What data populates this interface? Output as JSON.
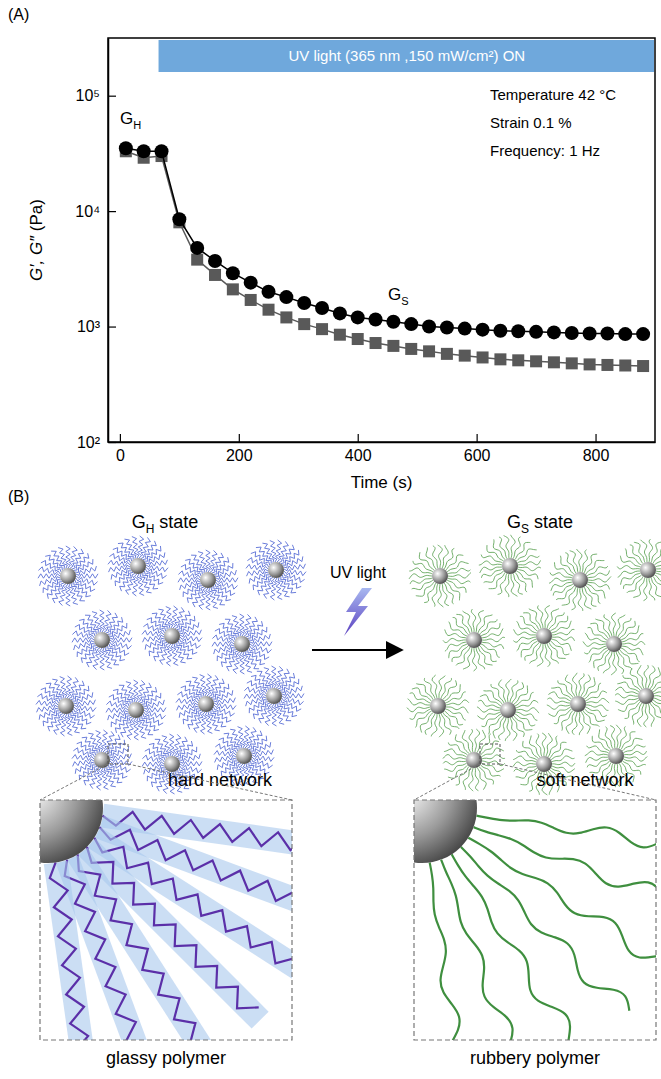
{
  "chart_data": {
    "type": "line",
    "panel_label": "(A)",
    "x_label": "Time (s)",
    "y_label": "G′, G″ (Pa)",
    "log": "y",
    "xlim": [
      -20,
      900
    ],
    "ylim": [
      100,
      316000
    ],
    "xticks": [
      0,
      200,
      400,
      600,
      800
    ],
    "yticks": [
      {
        "value": 100,
        "label": "10²"
      },
      {
        "value": 1000,
        "label": "10³"
      },
      {
        "value": 10000,
        "label": "10⁴"
      },
      {
        "value": 100000,
        "label": "10⁵"
      }
    ],
    "x": [
      10,
      40,
      70,
      100,
      130,
      160,
      190,
      220,
      250,
      280,
      310,
      340,
      370,
      400,
      430,
      460,
      490,
      520,
      550,
      580,
      610,
      640,
      670,
      700,
      730,
      760,
      790,
      820,
      850,
      880
    ],
    "series": [
      {
        "color": "#000000",
        "marker": "circle",
        "values": [
          35000,
          33000,
          33000,
          8500,
          4800,
          3700,
          2900,
          2400,
          2000,
          1800,
          1600,
          1450,
          1300,
          1200,
          1150,
          1100,
          1050,
          1000,
          980,
          960,
          940,
          920,
          910,
          900,
          890,
          880,
          870,
          870,
          860,
          860
        ]
      },
      {
        "color": "#595959",
        "marker": "square",
        "values": [
          33000,
          29000,
          30000,
          8000,
          3800,
          2800,
          2100,
          1700,
          1400,
          1200,
          1050,
          950,
          850,
          780,
          720,
          680,
          640,
          610,
          580,
          560,
          540,
          520,
          510,
          500,
          490,
          480,
          470,
          465,
          460,
          455
        ]
      }
    ],
    "annotations": [
      {
        "text": "UV light (365 nm ,150 mW/cm²) ON",
        "x_start": 65
      },
      {
        "text": "Temperature 42 °C"
      },
      {
        "text": "Strain 0.1 %"
      },
      {
        "text": "Frequency: 1 Hz"
      },
      {
        "text": "G",
        "sub": "H"
      },
      {
        "text": "G",
        "sub": "S"
      }
    ]
  },
  "diagram": {
    "panel_label": "(B)",
    "arrow_label": "UV light",
    "left": {
      "state": {
        "text": "G",
        "sub": "H",
        "suffix": "state"
      },
      "network": "hard network",
      "inset": "glassy polymer"
    },
    "right": {
      "state": {
        "text": "G",
        "sub": "S",
        "suffix": "state"
      },
      "network": "soft network",
      "inset": "rubbery polymer"
    }
  }
}
